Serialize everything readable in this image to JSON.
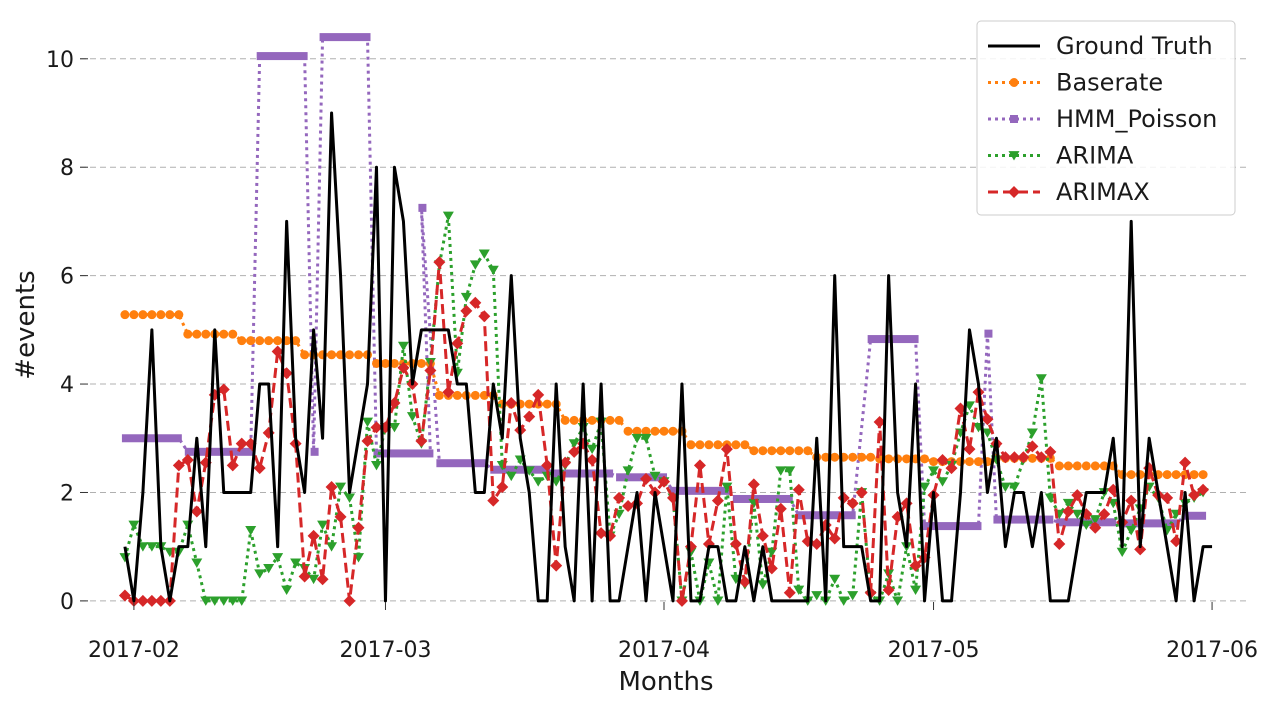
{
  "chart_data": {
    "type": "line",
    "title": "",
    "xlabel": "Months",
    "ylabel": "#events",
    "x_ticks": [
      "2017-02",
      "2017-03",
      "2017-04",
      "2017-05",
      "2017-06"
    ],
    "y_ticks": [
      "0",
      "2",
      "4",
      "6",
      "8",
      "10"
    ],
    "xlim": [
      "2017-01-26",
      "2017-06-05"
    ],
    "ylim": [
      -0.5,
      10.9
    ],
    "grid": "horizontal dashed",
    "legend_position": "top-right",
    "x_start": "2017-01-31",
    "x_end": "2017-05-31",
    "series": [
      {
        "name": "Ground Truth",
        "color": "#000000",
        "style": "solid",
        "marker": "none",
        "values": [
          1,
          0,
          2,
          5,
          1,
          0,
          1,
          1,
          3,
          1,
          5,
          2,
          2,
          2,
          2,
          4,
          4,
          1,
          7,
          3,
          2,
          5,
          3,
          9,
          6,
          2,
          3,
          4,
          8,
          0,
          8,
          7,
          4,
          5,
          5,
          5,
          5,
          4,
          4,
          2,
          2,
          4,
          3,
          6,
          3,
          2,
          0,
          0,
          4,
          1,
          0,
          4,
          0,
          4,
          0,
          0,
          1,
          2,
          0,
          2,
          1,
          0,
          4,
          0,
          0,
          1,
          1,
          0,
          0,
          1,
          0,
          1,
          0,
          0,
          0,
          0,
          0,
          3,
          0,
          6,
          1,
          1,
          1,
          0,
          0,
          6,
          2,
          1,
          4,
          0,
          2,
          0,
          0,
          2,
          5,
          4,
          2,
          3,
          1,
          2,
          2,
          1,
          2,
          0,
          0,
          0,
          1,
          2,
          2,
          2,
          3,
          1,
          7,
          1,
          3,
          2,
          1,
          0,
          2,
          0,
          1,
          1
        ]
      },
      {
        "name": "Baserate",
        "color": "#ff7f0e",
        "style": "dotted",
        "marker": "circle",
        "segments": [
          {
            "from": "2017-01-31",
            "to": "2017-02-06",
            "value": 5.28
          },
          {
            "from": "2017-02-07",
            "to": "2017-02-12",
            "value": 4.92
          },
          {
            "from": "2017-02-13",
            "to": "2017-02-19",
            "value": 4.8
          },
          {
            "from": "2017-02-20",
            "to": "2017-02-27",
            "value": 4.54
          },
          {
            "from": "2017-02-28",
            "to": "2017-03-06",
            "value": 4.38
          },
          {
            "from": "2017-03-07",
            "to": "2017-03-13",
            "value": 3.79
          },
          {
            "from": "2017-03-14",
            "to": "2017-03-20",
            "value": 3.63
          },
          {
            "from": "2017-03-21",
            "to": "2017-03-27",
            "value": 3.33
          },
          {
            "from": "2017-03-28",
            "to": "2017-04-03",
            "value": 3.13
          },
          {
            "from": "2017-04-04",
            "to": "2017-04-10",
            "value": 2.88
          },
          {
            "from": "2017-04-11",
            "to": "2017-04-17",
            "value": 2.77
          },
          {
            "from": "2017-04-18",
            "to": "2017-04-24",
            "value": 2.65
          },
          {
            "from": "2017-04-25",
            "to": "2017-04-30",
            "value": 2.62
          },
          {
            "from": "2017-05-01",
            "to": "2017-05-07",
            "value": 2.57
          },
          {
            "from": "2017-05-08",
            "to": "2017-05-14",
            "value": 2.63
          },
          {
            "from": "2017-05-15",
            "to": "2017-05-21",
            "value": 2.49
          },
          {
            "from": "2017-05-22",
            "to": "2017-05-31",
            "value": 2.33
          }
        ]
      },
      {
        "name": "HMM_Poisson",
        "color": "#9467bd",
        "style": "dotted",
        "marker": "square",
        "segments": [
          {
            "from": "2017-01-31",
            "to": "2017-02-06",
            "value": 3.0
          },
          {
            "from": "2017-02-07",
            "to": "2017-02-14",
            "value": 2.75
          },
          {
            "from": "2017-02-15",
            "to": "2017-02-20",
            "value": 10.05
          },
          {
            "from": "2017-02-21",
            "to": "2017-02-21",
            "value": 2.75
          },
          {
            "from": "2017-02-22",
            "to": "2017-02-27",
            "value": 10.4
          },
          {
            "from": "2017-02-28",
            "to": "2017-03-06",
            "value": 2.72
          },
          {
            "from": "2017-03-05",
            "to": "2017-03-05",
            "value": 7.25
          },
          {
            "from": "2017-03-07",
            "to": "2017-03-12",
            "value": 2.54
          },
          {
            "from": "2017-03-13",
            "to": "2017-03-19",
            "value": 2.42
          },
          {
            "from": "2017-03-20",
            "to": "2017-03-26",
            "value": 2.35
          },
          {
            "from": "2017-03-27",
            "to": "2017-04-01",
            "value": 2.28
          },
          {
            "from": "2017-04-02",
            "to": "2017-04-08",
            "value": 2.03
          },
          {
            "from": "2017-04-09",
            "to": "2017-04-15",
            "value": 1.88
          },
          {
            "from": "2017-04-16",
            "to": "2017-04-22",
            "value": 1.58
          },
          {
            "from": "2017-04-24",
            "to": "2017-04-29",
            "value": 4.83
          },
          {
            "from": "2017-04-30",
            "to": "2017-05-06",
            "value": 1.38
          },
          {
            "from": "2017-05-07",
            "to": "2017-05-07",
            "value": 4.93
          },
          {
            "from": "2017-05-08",
            "to": "2017-05-14",
            "value": 1.5
          },
          {
            "from": "2017-05-15",
            "to": "2017-05-21",
            "value": 1.45
          },
          {
            "from": "2017-05-22",
            "to": "2017-05-28",
            "value": 1.43
          },
          {
            "from": "2017-05-29",
            "to": "2017-05-31",
            "value": 1.57
          }
        ]
      },
      {
        "name": "ARIMA",
        "color": "#2ca02c",
        "style": "dotted",
        "marker": "triangle-down",
        "values": [
          0.8,
          1.4,
          1.0,
          1.0,
          1.0,
          0.9,
          0.9,
          1.4,
          0.7,
          0.0,
          0.0,
          0.0,
          0.0,
          0.0,
          1.3,
          0.5,
          0.6,
          0.8,
          0.2,
          0.7,
          0.6,
          0.4,
          1.4,
          1.0,
          2.1,
          1.9,
          0.8,
          3.3,
          2.5,
          3.2,
          3.2,
          4.7,
          3.4,
          2.9,
          4.4,
          6.2,
          7.1,
          4.2,
          5.6,
          6.2,
          6.4,
          6.1,
          2.5,
          2.3,
          2.6,
          2.4,
          2.2,
          2.3,
          2.2,
          2.5,
          2.9,
          3.2,
          2.8,
          3.3,
          1.2,
          1.6,
          2.4,
          3.0,
          3.0,
          2.3,
          2.2,
          1.9,
          0.0,
          0.9,
          0.0,
          0.7,
          0.0,
          2.1,
          0.4,
          0.3,
          1.8,
          0.3,
          0.9,
          2.4,
          2.4,
          0.2,
          0.0,
          0.1,
          0.0,
          0.4,
          0.0,
          0.1,
          2.0,
          0.1,
          0.0,
          0.5,
          0.0,
          1.0,
          0.2,
          2.1,
          2.4,
          2.2,
          2.5,
          3.1,
          3.6,
          3.2,
          3.1,
          2.6,
          2.1,
          2.1,
          2.6,
          3.1,
          4.1,
          1.9,
          1.6,
          1.8,
          1.6,
          1.4,
          1.5,
          2.0,
          1.8,
          0.9,
          1.3,
          1.7,
          2.1,
          1.9,
          1.3,
          1.6,
          1.8,
          1.9,
          2.0
        ]
      },
      {
        "name": "ARIMAX",
        "color": "#d62728",
        "style": "dashed",
        "marker": "diamond",
        "values": [
          0.1,
          0.0,
          0.0,
          0.0,
          0.0,
          0.0,
          2.5,
          2.6,
          1.65,
          2.55,
          3.8,
          3.9,
          2.5,
          2.9,
          2.9,
          2.45,
          3.1,
          4.6,
          4.2,
          2.9,
          0.45,
          1.2,
          0.4,
          2.1,
          1.55,
          0.0,
          1.35,
          2.95,
          3.2,
          3.2,
          3.65,
          4.3,
          4.0,
          2.95,
          4.25,
          6.25,
          3.85,
          4.75,
          5.35,
          5.5,
          5.25,
          1.85,
          2.1,
          3.65,
          3.15,
          3.4,
          3.8,
          2.5,
          0.65,
          2.55,
          2.75,
          2.9,
          2.6,
          1.25,
          1.2,
          1.9,
          1.75,
          1.8,
          2.25,
          2.0,
          2.2,
          1.9,
          0.0,
          1.0,
          2.5,
          1.05,
          1.85,
          2.8,
          1.05,
          0.35,
          2.15,
          1.2,
          0.6,
          1.7,
          0.15,
          2.05,
          1.1,
          1.05,
          1.4,
          1.15,
          1.9,
          1.8,
          2.0,
          0.15,
          3.3,
          0.2,
          1.55,
          1.8,
          0.65,
          0.8,
          1.95,
          2.6,
          2.45,
          3.55,
          2.8,
          3.85,
          3.35,
          2.9,
          2.65,
          2.65,
          2.65,
          2.85,
          2.65,
          2.75,
          1.05,
          1.65,
          1.95,
          1.6,
          1.35,
          1.6,
          2.05,
          1.45,
          1.85,
          0.95,
          2.45,
          1.95,
          1.9,
          1.1,
          2.55,
          1.95,
          2.05
        ]
      }
    ]
  }
}
